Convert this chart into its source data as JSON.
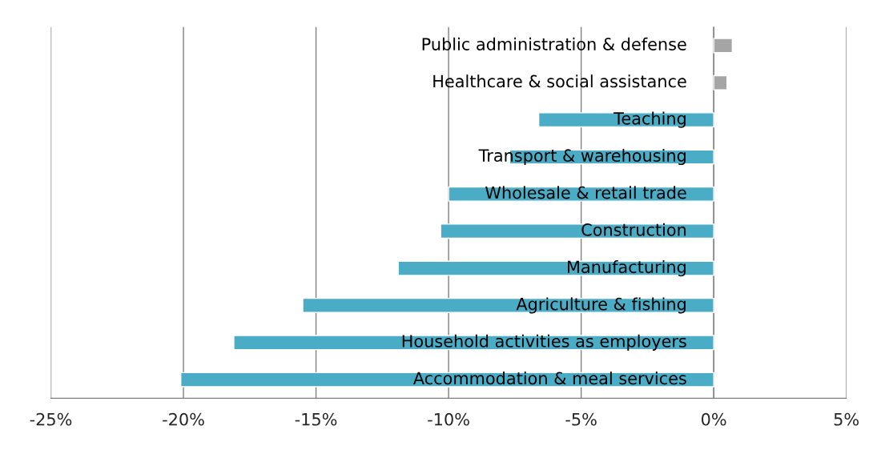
{
  "chart_data": {
    "type": "bar",
    "orientation": "horizontal",
    "categories": [
      "Public administration & defense",
      "Healthcare & social assistance",
      "Teaching",
      "Transport & warehousing",
      "Wholesale & retail trade",
      "Construction",
      "Manufacturing",
      "Agriculture & fishing",
      "Household activities as employers",
      "Accommodation & meal services"
    ],
    "values": [
      0.7,
      0.5,
      -6.6,
      -7.7,
      -10.0,
      -10.3,
      -11.9,
      -15.5,
      -18.1,
      -20.1
    ],
    "colors": [
      "#a5a5a5",
      "#a5a5a5",
      "#4bacc6",
      "#4bacc6",
      "#4bacc6",
      "#4bacc6",
      "#4bacc6",
      "#4bacc6",
      "#4bacc6",
      "#4bacc6"
    ],
    "xlim": [
      -25,
      5
    ],
    "xticks": [
      {
        "value": -25,
        "label": "-25%"
      },
      {
        "value": -20,
        "label": "-20%"
      },
      {
        "value": -15,
        "label": "-15%"
      },
      {
        "value": -10,
        "label": "-10%"
      },
      {
        "value": -5,
        "label": "-5%"
      },
      {
        "value": 0,
        "label": "0%"
      },
      {
        "value": 5,
        "label": "5%"
      }
    ],
    "grid": "x"
  }
}
